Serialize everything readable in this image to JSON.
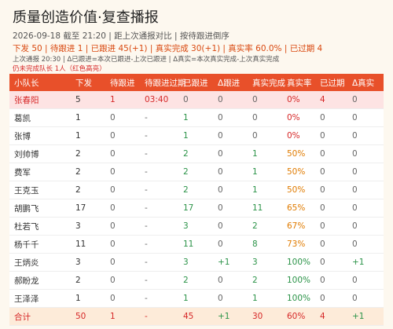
{
  "header": {
    "title": "质量创造价值·复查播报",
    "meta": "2026-09-18 截至 21:20 | 距上次通报对比 | 按待跟进倒序",
    "summary": "下发 50 | 待跟进 1 | 已跟进 45(+1) | 真实完成 30(+1) | 真实率 60.0% | 已过期 4",
    "note": "上次通报 20:30 | Δ已跟进=本次已跟进-上次已跟进 | Δ真实=本次真实完成-上次真实完成",
    "alert": "仍未完成队长 1人（红色高亮）"
  },
  "table": {
    "columns": [
      "小队长",
      "下发",
      "待跟进",
      "待跟进过期",
      "已跟进",
      "Δ跟进",
      "真实完成",
      "真实率",
      "已过期",
      "Δ真实"
    ],
    "rows": [
      [
        "张春阳",
        "5",
        "1",
        "03:40",
        "0",
        "0",
        "0",
        "0%",
        "4",
        "0"
      ],
      [
        "葛凯",
        "1",
        "0",
        "-",
        "1",
        "0",
        "0",
        "0%",
        "0",
        "0"
      ],
      [
        "张博",
        "1",
        "0",
        "-",
        "1",
        "0",
        "0",
        "0%",
        "0",
        "0"
      ],
      [
        "刘帅博",
        "2",
        "0",
        "-",
        "2",
        "0",
        "1",
        "50%",
        "0",
        "0"
      ],
      [
        "费军",
        "2",
        "0",
        "-",
        "2",
        "0",
        "1",
        "50%",
        "0",
        "0"
      ],
      [
        "王克玉",
        "2",
        "0",
        "-",
        "2",
        "0",
        "1",
        "50%",
        "0",
        "0"
      ],
      [
        "胡鹏飞",
        "17",
        "0",
        "-",
        "17",
        "0",
        "11",
        "65%",
        "0",
        "0"
      ],
      [
        "杜若飞",
        "3",
        "0",
        "-",
        "3",
        "0",
        "2",
        "67%",
        "0",
        "0"
      ],
      [
        "杨千千",
        "11",
        "0",
        "-",
        "11",
        "0",
        "8",
        "73%",
        "0",
        "0"
      ],
      [
        "王炳炎",
        "3",
        "0",
        "-",
        "3",
        "+1",
        "3",
        "100%",
        "0",
        "+1"
      ],
      [
        "郝盼龙",
        "2",
        "0",
        "-",
        "2",
        "0",
        "2",
        "100%",
        "0",
        "0"
      ],
      [
        "王泽泽",
        "1",
        "0",
        "-",
        "1",
        "0",
        "1",
        "100%",
        "0",
        "0"
      ]
    ],
    "total": [
      "合计",
      "50",
      "1",
      "-",
      "45",
      "+1",
      "30",
      "60%",
      "4",
      "+1"
    ]
  }
}
